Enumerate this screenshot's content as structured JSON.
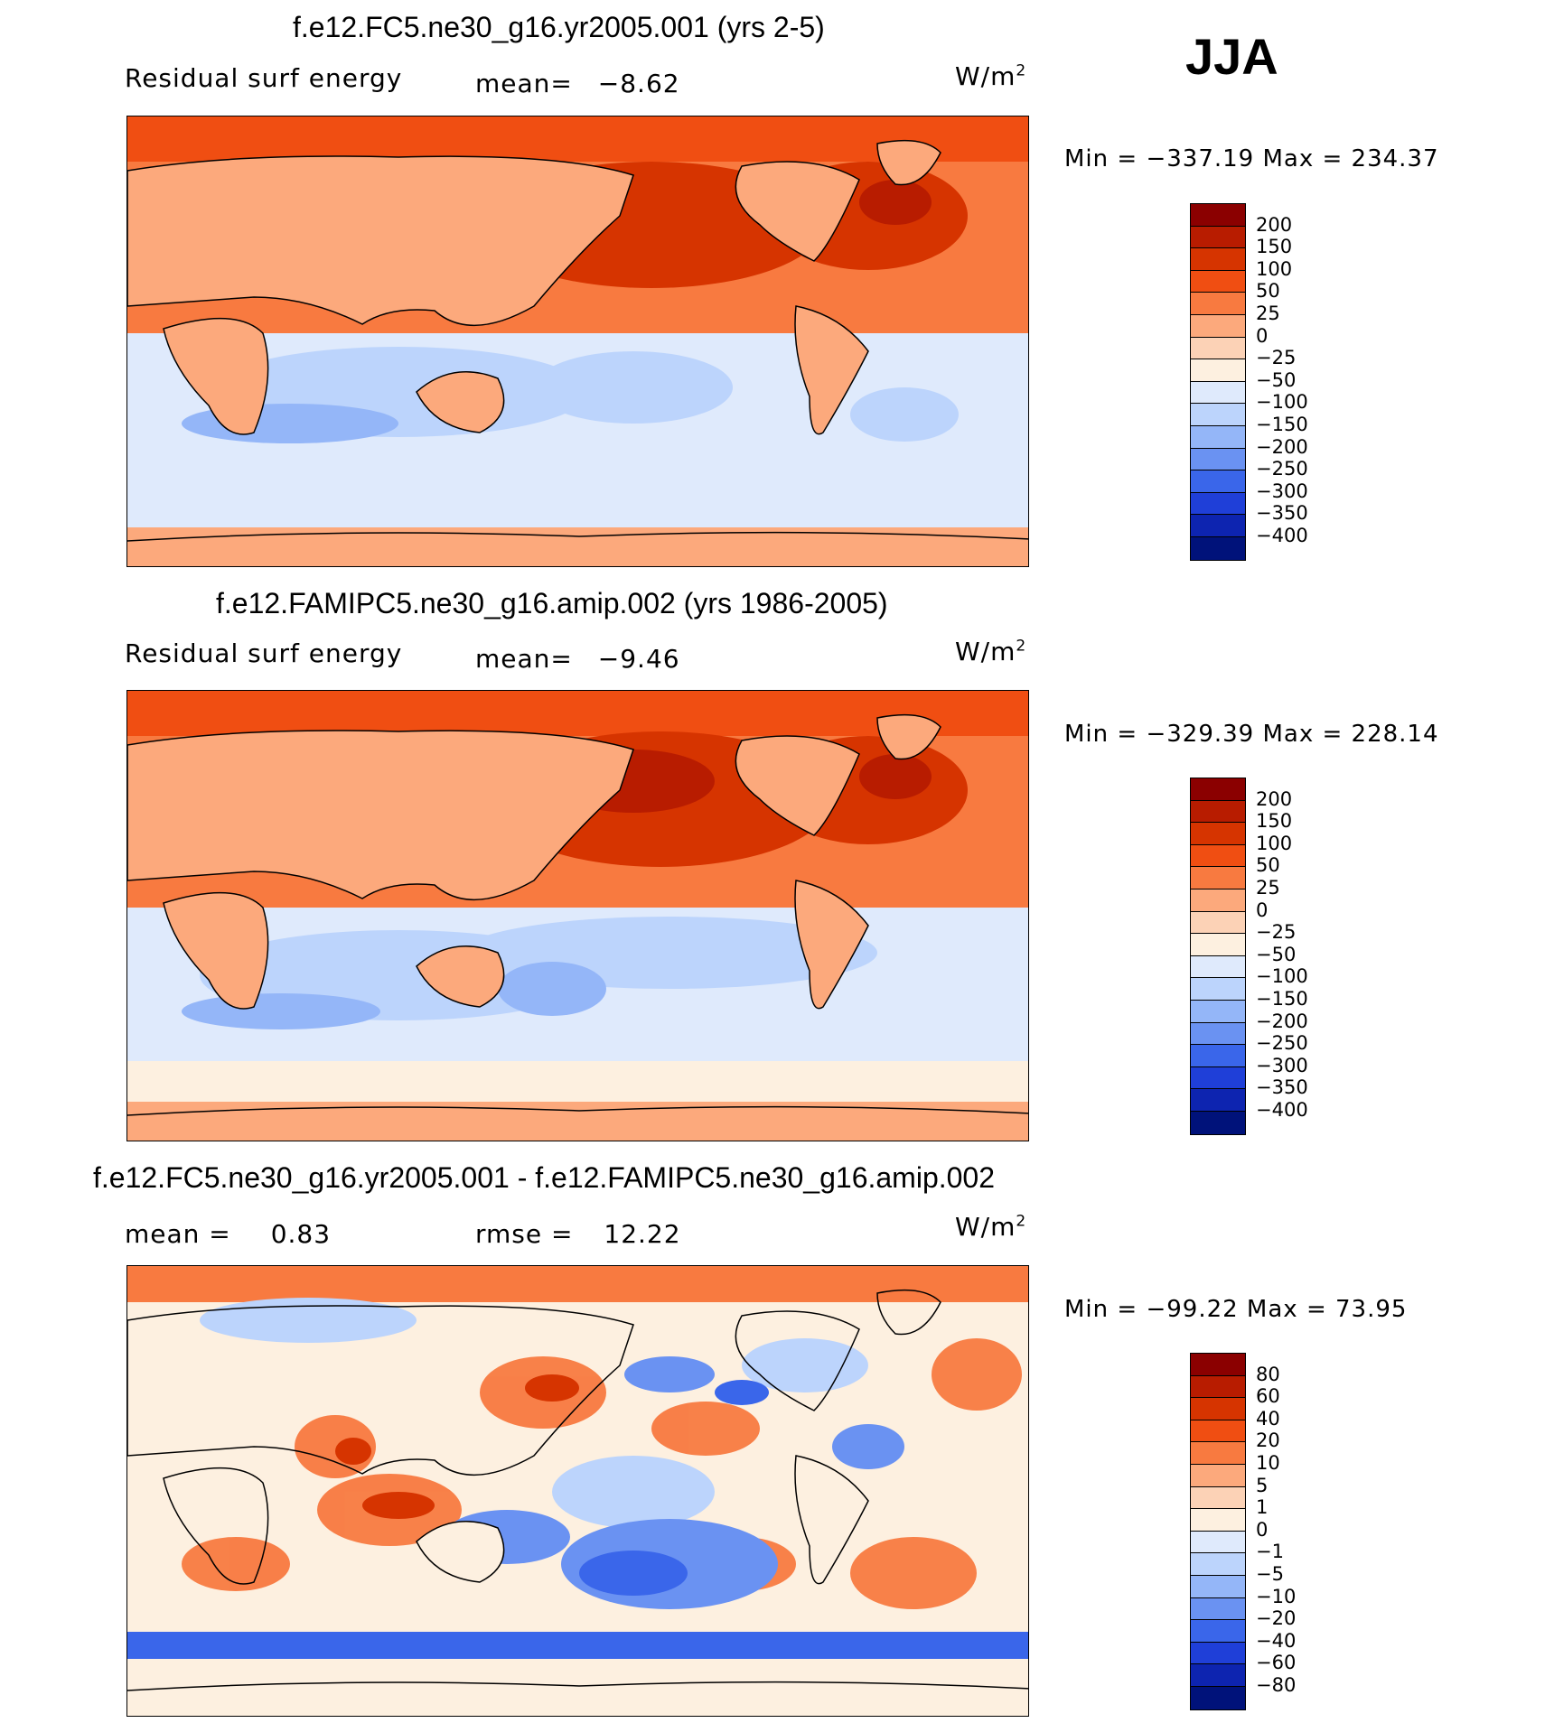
{
  "season": "JJA",
  "units": "W/m",
  "units_sup": "2",
  "panels": [
    {
      "title": "f.e12.FC5.ne30_g16.yr2005.001 (yrs 2-5)",
      "variable": "Residual surf energy",
      "stat_label": "mean=",
      "stat_value": "−8.62",
      "minmax": "Min = −337.19 Max = 234.37",
      "map_alt": "Global map of residual surface energy"
    },
    {
      "title": "f.e12.FAMIPC5.ne30_g16.amip.002 (yrs 1986-2005)",
      "variable": "Residual surf energy",
      "stat_label": "mean=",
      "stat_value": "−9.46",
      "minmax": "Min = −329.39 Max = 228.14",
      "map_alt": "Global map of residual surface energy"
    },
    {
      "title": "f.e12.FC5.ne30_g16.yr2005.001 - f.e12.FAMIPC5.ne30_g16.amip.002",
      "mean_label": "mean =",
      "mean_value": "0.83",
      "rmse_label": "rmse =",
      "rmse_value": "12.22",
      "minmax": "Min = −99.22 Max =  73.95",
      "map_alt": "Global map of difference"
    }
  ],
  "colorbar_main": {
    "labels": [
      "200",
      "150",
      "100",
      "50",
      "25",
      "0",
      "−25",
      "−50",
      "−100",
      "−150",
      "−200",
      "−250",
      "−300",
      "−350",
      "−400"
    ],
    "colors": [
      "#8b0000",
      "#b81c00",
      "#d63400",
      "#f04e12",
      "#f87a40",
      "#fca97c",
      "#fcd2b6",
      "#fdf0e0",
      "#dfeafc",
      "#bcd4fc",
      "#94b6f8",
      "#6a92f2",
      "#3a66ea",
      "#1f3fd8",
      "#0d24b0",
      "#00127a"
    ]
  },
  "colorbar_diff": {
    "labels": [
      "80",
      "60",
      "40",
      "20",
      "10",
      "5",
      "1",
      "0",
      "−1",
      "−5",
      "−10",
      "−20",
      "−40",
      "−60",
      "−80"
    ],
    "colors": [
      "#8b0000",
      "#b81c00",
      "#d63400",
      "#f04e12",
      "#f87a40",
      "#fca97c",
      "#fcd2b6",
      "#fdf0e0",
      "#dfeafc",
      "#bcd4fc",
      "#94b6f8",
      "#6a92f2",
      "#3a66ea",
      "#1f3fd8",
      "#0d24b0",
      "#00127a"
    ]
  }
}
